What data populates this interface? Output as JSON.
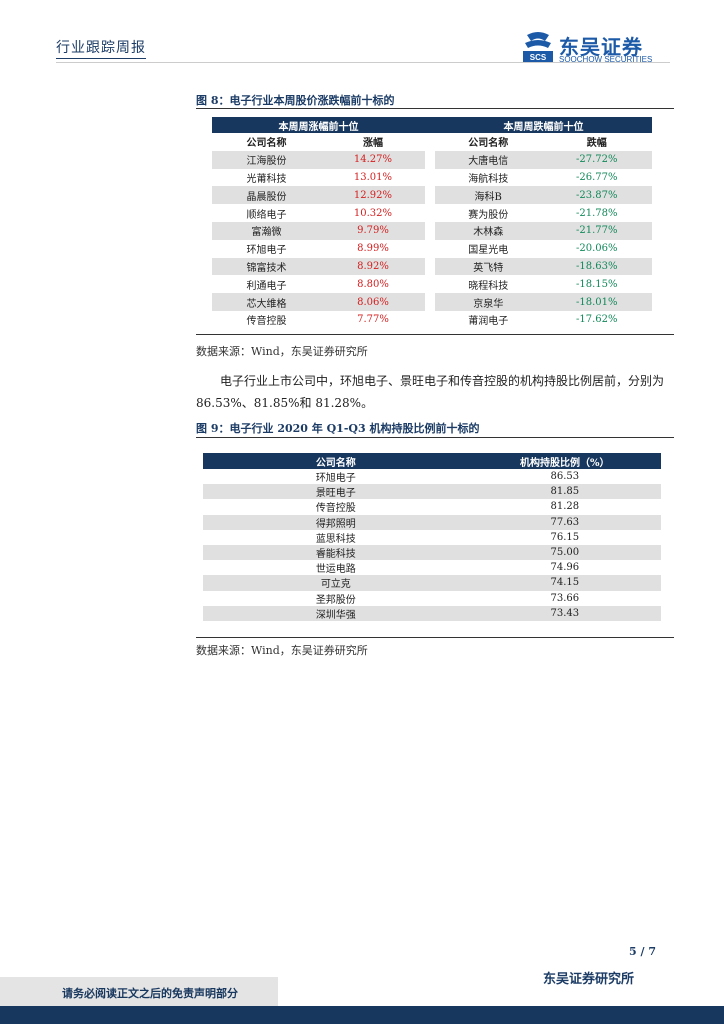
{
  "header": {
    "category": "行业跟踪周报",
    "logo_cn": "东吴证券",
    "logo_en": "SOOCHOW SECURITIES",
    "logo_mark_text": "SCS"
  },
  "figure8": {
    "title": "图 8：电子行业本周股价涨跌幅前十标的",
    "rise_header": "本周周涨幅前十位",
    "fall_header": "本周周跌幅前十位",
    "col_company": "公司名称",
    "col_rise": "涨幅",
    "col_fall": "跌幅",
    "rows": [
      {
        "rise_name": "江海股份",
        "rise_pct": "14.27%",
        "fall_name": "大唐电信",
        "fall_pct": "-27.72%"
      },
      {
        "rise_name": "光莆科技",
        "rise_pct": "13.01%",
        "fall_name": "海航科技",
        "fall_pct": "-26.77%"
      },
      {
        "rise_name": "晶晨股份",
        "rise_pct": "12.92%",
        "fall_name": "海科B",
        "fall_pct": "-23.87%"
      },
      {
        "rise_name": "顺络电子",
        "rise_pct": "10.32%",
        "fall_name": "赛为股份",
        "fall_pct": "-21.78%"
      },
      {
        "rise_name": "富瀚微",
        "rise_pct": "9.79%",
        "fall_name": "木林森",
        "fall_pct": "-21.77%"
      },
      {
        "rise_name": "环旭电子",
        "rise_pct": "8.99%",
        "fall_name": "国星光电",
        "fall_pct": "-20.06%"
      },
      {
        "rise_name": "锦富技术",
        "rise_pct": "8.92%",
        "fall_name": "英飞特",
        "fall_pct": "-18.63%"
      },
      {
        "rise_name": "利通电子",
        "rise_pct": "8.80%",
        "fall_name": "晓程科技",
        "fall_pct": "-18.15%"
      },
      {
        "rise_name": "芯大维格",
        "rise_pct": "8.06%",
        "fall_name": "京泉华",
        "fall_pct": "-18.01%"
      },
      {
        "rise_name": "传音控股",
        "rise_pct": "7.77%",
        "fall_name": "莆润电子",
        "fall_pct": "-17.62%"
      }
    ],
    "source": "数据来源：Wind，东吴证券研究所"
  },
  "paragraph": "电子行业上市公司中，环旭电子、景旺电子和传音控股的机构持股比例居前，分别为 86.53%、81.85%和 81.28%。",
  "figure9": {
    "title": "图 9：电子行业 2020 年 Q1-Q3 机构持股比例前十标的",
    "col_company": "公司名称",
    "col_ratio": "机构持股比例（%）",
    "rows": [
      {
        "name": "环旭电子",
        "ratio": "86.53"
      },
      {
        "name": "景旺电子",
        "ratio": "81.85"
      },
      {
        "name": "传音控股",
        "ratio": "81.28"
      },
      {
        "name": "得邦照明",
        "ratio": "77.63"
      },
      {
        "name": "蓝思科技",
        "ratio": "76.15"
      },
      {
        "name": "睿能科技",
        "ratio": "75.00"
      },
      {
        "name": "世运电路",
        "ratio": "74.96"
      },
      {
        "name": "可立克",
        "ratio": "74.15"
      },
      {
        "name": "圣邦股份",
        "ratio": "73.66"
      },
      {
        "name": "深圳华强",
        "ratio": "73.43"
      }
    ],
    "source": "数据来源：Wind，东吴证券研究所"
  },
  "footer": {
    "page": "5 / 7",
    "org": "东吴证券研究所",
    "disclaimer": "请务必阅读正文之后的免责声明部分"
  },
  "colors": {
    "navy": "#17375e",
    "rise": "#d51e1e",
    "fall": "#11895a"
  }
}
